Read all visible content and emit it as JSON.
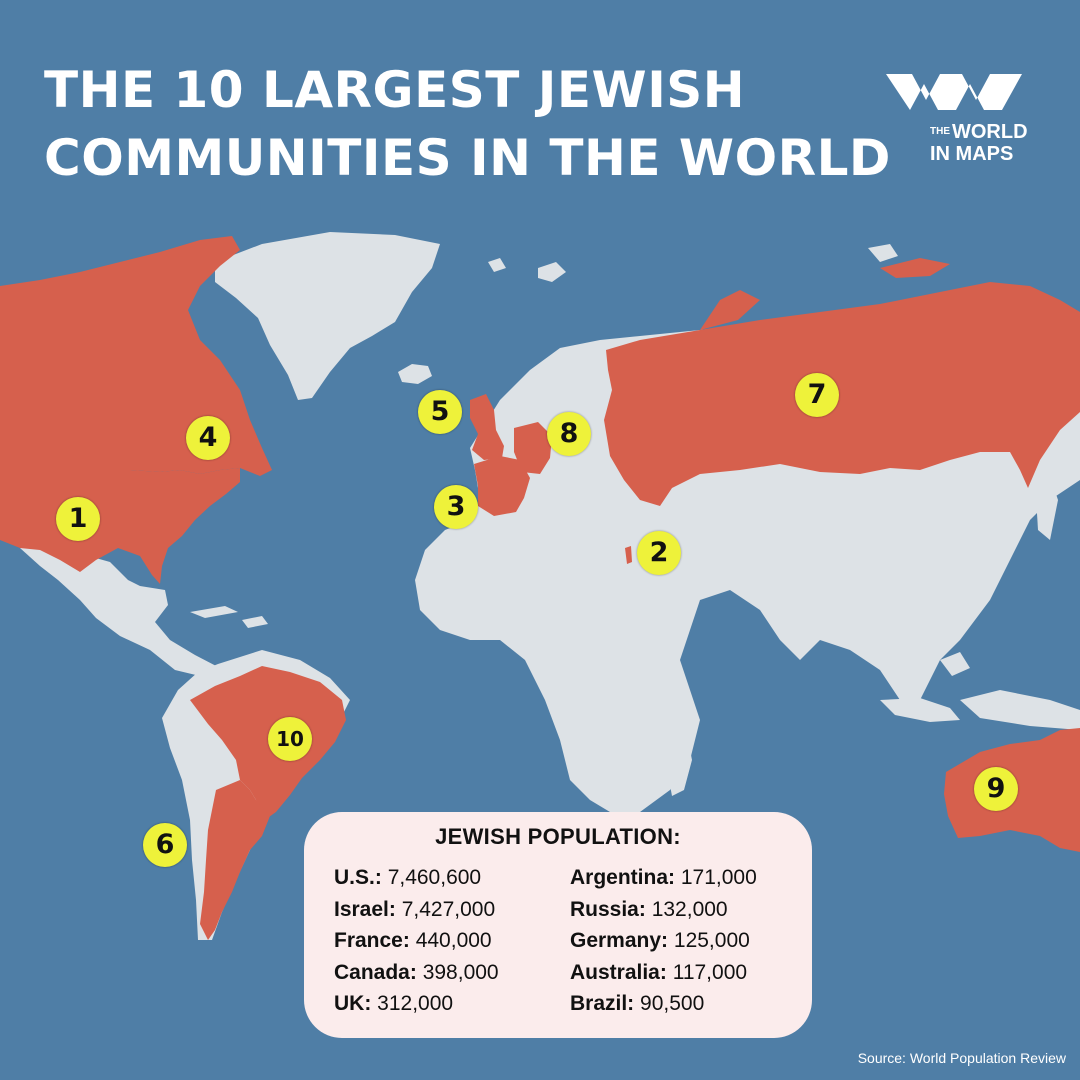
{
  "title": {
    "line1": "THE 10 LARGEST JEWISH",
    "line2": "COMMUNITIES IN THE WORLD"
  },
  "logo": {
    "the": "THE",
    "world": "WORLD",
    "in_maps": "IN MAPS",
    "icon": "wm-logo-icon"
  },
  "colors": {
    "ocean": "#4f7ea6",
    "land": "#dde2e6",
    "highlight": "#d6604d",
    "marker": "#eef23a",
    "legend_bg": "#fbecec"
  },
  "markers": [
    {
      "rank": "1",
      "country": "U.S."
    },
    {
      "rank": "2",
      "country": "Israel"
    },
    {
      "rank": "3",
      "country": "France"
    },
    {
      "rank": "4",
      "country": "Canada"
    },
    {
      "rank": "5",
      "country": "UK"
    },
    {
      "rank": "6",
      "country": "Argentina"
    },
    {
      "rank": "7",
      "country": "Russia"
    },
    {
      "rank": "8",
      "country": "Germany"
    },
    {
      "rank": "9",
      "country": "Australia"
    },
    {
      "rank": "10",
      "country": "Brazil"
    }
  ],
  "legend": {
    "title": "JEWISH POPULATION:",
    "left": [
      {
        "label": "U.S.:",
        "value": "7,460,600"
      },
      {
        "label": "Israel:",
        "value": " 7,427,000"
      },
      {
        "label": "France:",
        "value": " 440,000"
      },
      {
        "label": "Canada:",
        "value": "398,000"
      },
      {
        "label": "UK:",
        "value": "312,000"
      }
    ],
    "right": [
      {
        "label": "Argentina:",
        "value": "171,000"
      },
      {
        "label": "Russia:",
        "value": "132,000"
      },
      {
        "label": "Germany:",
        "value": "125,000"
      },
      {
        "label": "Australia:",
        "value": "117,000"
      },
      {
        "label": "Brazil:",
        "value": "90,500"
      }
    ]
  },
  "source": "Source: World Population Review"
}
